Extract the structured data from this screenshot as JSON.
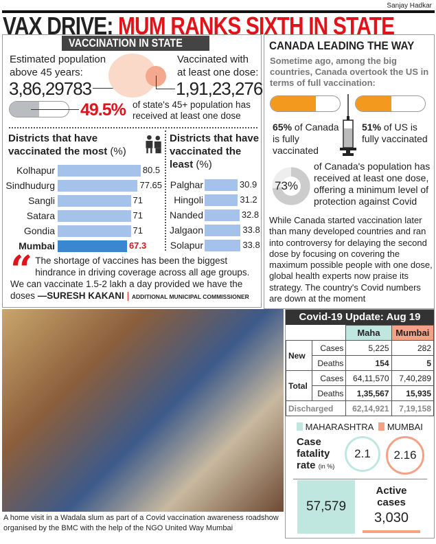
{
  "credit": "Sanjay Hadkar",
  "headline": {
    "black": "VAX DRIVE:",
    "red": "MUM RANKS SIXTH IN STATE"
  },
  "state": {
    "tag": "VACCINATION IN STATE",
    "pop_label": "Estimated population above 45 years:",
    "pop_value": "3,86,29783",
    "vacc_label": "Vaccinated with at least one dose:",
    "vacc_value": "1,91,23,276",
    "percent": "49.5%",
    "percent_value": 49.5,
    "percent_text": "of state's 45+ population has received at least one dose"
  },
  "most": {
    "title": "Districts that have vaccinated the most",
    "unit": "(%)",
    "icon": "vaccination-people-icon",
    "rows": [
      {
        "name": "Kolhapur",
        "value": 80.5,
        "label": "80.5"
      },
      {
        "name": "Sindhudurg",
        "value": 77.65,
        "label": "77.65"
      },
      {
        "name": "Sangli",
        "value": 71,
        "label": "71"
      },
      {
        "name": "Satara",
        "value": 71,
        "label": "71"
      },
      {
        "name": "Gondia",
        "value": 71,
        "label": "71"
      },
      {
        "name": "Mumbai",
        "value": 67.3,
        "label": "67.3",
        "highlight": true
      }
    ]
  },
  "least": {
    "title": "Districts that have vaccinated the least",
    "unit": "(%)",
    "rows": [
      {
        "name": "Palghar",
        "value": 30.9,
        "label": "30.9"
      },
      {
        "name": "Hingoli",
        "value": 31.2,
        "label": "31.2"
      },
      {
        "name": "Nanded",
        "value": 32.8,
        "label": "32.8"
      },
      {
        "name": "Jalgaon",
        "value": 33.8,
        "label": "33.8"
      },
      {
        "name": "Solapur",
        "value": 33.8,
        "label": "33.8"
      }
    ]
  },
  "quote": {
    "text": "The shortage of vaccines has been the biggest hindrance in driving coverage across all age groups. We can vaccinate 1.5-2 lakh a day provided we have the doses",
    "author": "—SURESH KAKANI",
    "role": "ADDITIONAL MUNICIPAL COMMISSIONER"
  },
  "canada": {
    "title": "CANADA LEADING THE WAY",
    "intro": "Sometime ago, among the big countries, Canada overtook the US in terms of full vaccination:",
    "ca_pct": "65%",
    "ca_value": 65,
    "ca_text": "of Canada is fully vaccinated",
    "us_pct": "51%",
    "us_value": 51,
    "us_text": "of US is fully vaccinated",
    "one_dose_pct": "73%",
    "one_dose_value": 73,
    "one_dose_text": "of Canada's population has received at least one dose, offering a minimum level of protection against Covid",
    "body": "While Canada started vaccination later than many developed countries and ran into controversy for delaying the second dose by focusing on covering the maximum possible people with one dose, global health experts now praise its strategy. The country's Covid numbers are down at the moment",
    "color": "#f39a1e"
  },
  "photo_caption": "A home visit in a Wadala slum as part of a Covid vaccination awareness roadshow organised by the BMC with the help of the NGO United Way Mumbai",
  "covid": {
    "title": "Covid-19 Update: Aug 19",
    "cols": [
      "Maha",
      "Mumbai"
    ],
    "new_label": "New",
    "total_label": "Total",
    "cases": "Cases",
    "deaths": "Deaths",
    "discharged": "Discharged",
    "new_cases": [
      "5,225",
      "282"
    ],
    "new_deaths": [
      "154",
      "5"
    ],
    "total_cases": [
      "64,11,570",
      "7,40,289"
    ],
    "total_deaths": [
      "1,35,567",
      "15,935"
    ],
    "discharged_vals": [
      "62,14,921",
      "7,19,158"
    ],
    "legend_maha": "MAHARASHTRA",
    "legend_mumbai": "MUMBAI",
    "cfr_label": "Case fatality rate",
    "cfr_unit": "(in %)",
    "cfr_maha": "2.1",
    "cfr_mumbai": "2.16",
    "active_label": "Active cases",
    "active_maha": "57,579",
    "active_mumbai": "3,030",
    "maha_color": "#bfe6df",
    "mumbai_color": "#f4a184"
  }
}
